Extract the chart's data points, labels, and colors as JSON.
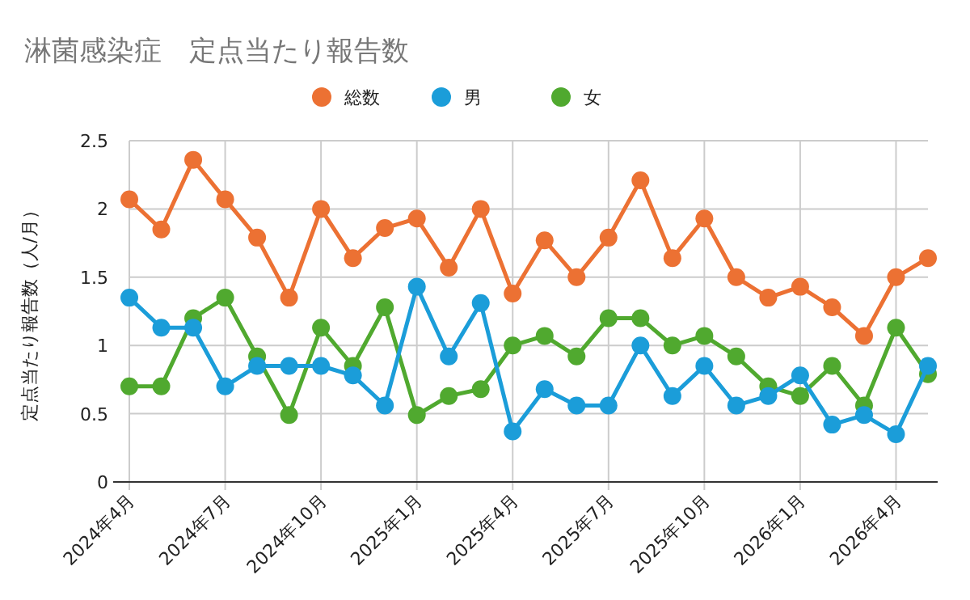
{
  "chart_data": {
    "type": "line",
    "title": "淋菌感染症　定点当たり報告数",
    "ylabel": "定点当たり報告数（人/月）",
    "categories": [
      "2024年4月",
      null,
      null,
      "2024年7月",
      null,
      null,
      "2024年10月",
      null,
      null,
      "2025年1月",
      null,
      null,
      "2025年4月",
      null,
      null,
      "2025年7月",
      null,
      null,
      "2025年10月",
      null,
      null,
      "2026年1月",
      null,
      null,
      "2026年4月",
      null
    ],
    "series": [
      {
        "name": "総数",
        "color": "#ec7133",
        "values": [
          2.07,
          1.85,
          2.36,
          2.07,
          1.79,
          1.35,
          2.0,
          1.64,
          1.86,
          1.93,
          1.57,
          2.0,
          1.38,
          1.77,
          1.5,
          1.79,
          2.21,
          1.64,
          1.93,
          1.5,
          1.35,
          1.43,
          1.28,
          1.07,
          1.5,
          1.64
        ]
      },
      {
        "name": "男",
        "color": "#1b9dd9",
        "values": [
          1.35,
          1.13,
          1.13,
          0.7,
          0.85,
          0.85,
          0.85,
          0.78,
          0.56,
          1.43,
          0.92,
          1.31,
          0.37,
          0.68,
          0.56,
          0.56,
          1.0,
          0.63,
          0.85,
          0.56,
          0.63,
          0.78,
          0.42,
          0.49,
          0.35,
          0.85
        ]
      },
      {
        "name": "女",
        "color": "#50a92f",
        "values": [
          0.7,
          0.7,
          1.2,
          1.35,
          0.92,
          0.49,
          1.13,
          0.85,
          1.28,
          0.49,
          0.63,
          0.68,
          1.0,
          1.07,
          0.92,
          1.2,
          1.2,
          1.0,
          1.07,
          0.92,
          0.7,
          0.63,
          0.85,
          0.56,
          1.13,
          0.79
        ]
      }
    ],
    "ylim": [
      0,
      2.5
    ],
    "yticks": [
      0,
      0.5,
      1,
      1.5,
      2,
      2.5
    ],
    "grid": true,
    "legend": "top",
    "marker": "circle",
    "line_style": "solid"
  }
}
